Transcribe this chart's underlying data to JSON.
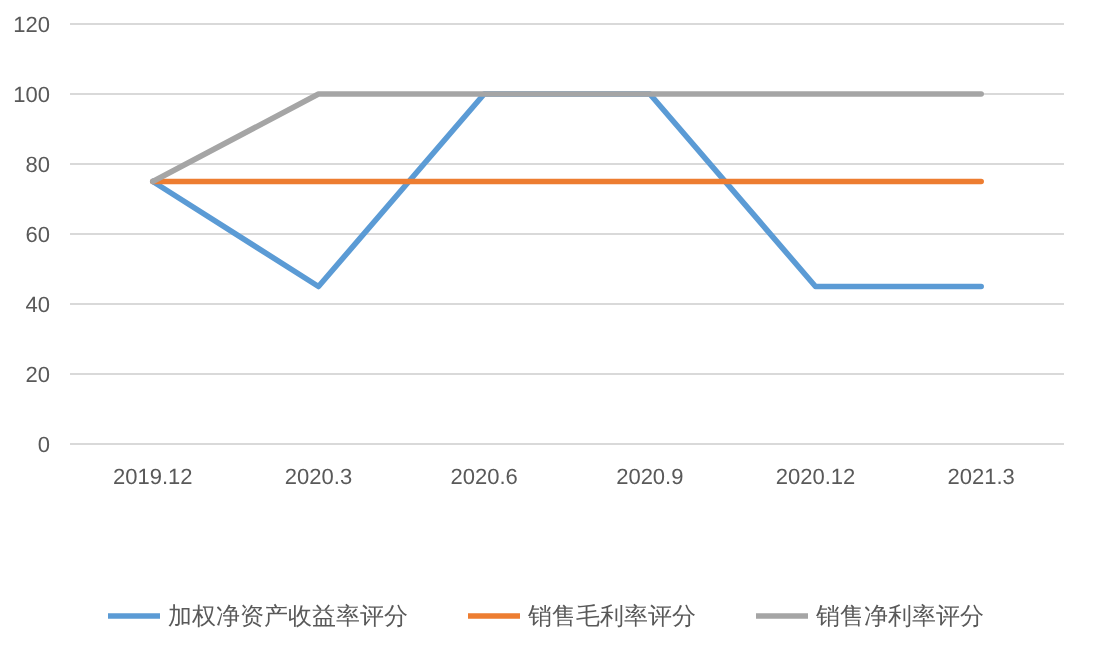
{
  "chart_data": {
    "type": "line",
    "categories": [
      "2019.12",
      "2020.3",
      "2020.6",
      "2020.9",
      "2020.12",
      "2021.3"
    ],
    "series": [
      {
        "name": "加权净资产收益率评分",
        "color": "#5b9bd5",
        "values": [
          75,
          45,
          100,
          100,
          45,
          45
        ]
      },
      {
        "name": "销售毛利率评分",
        "color": "#ed7d31",
        "values": [
          75,
          75,
          75,
          75,
          75,
          75
        ]
      },
      {
        "name": "销售净利率评分",
        "color": "#a5a5a5",
        "values": [
          75,
          100,
          100,
          100,
          100,
          100
        ]
      }
    ],
    "ylim": [
      0,
      120
    ],
    "yticks": [
      0,
      20,
      40,
      60,
      80,
      100,
      120
    ],
    "grid": "y",
    "legend": "bottom"
  }
}
